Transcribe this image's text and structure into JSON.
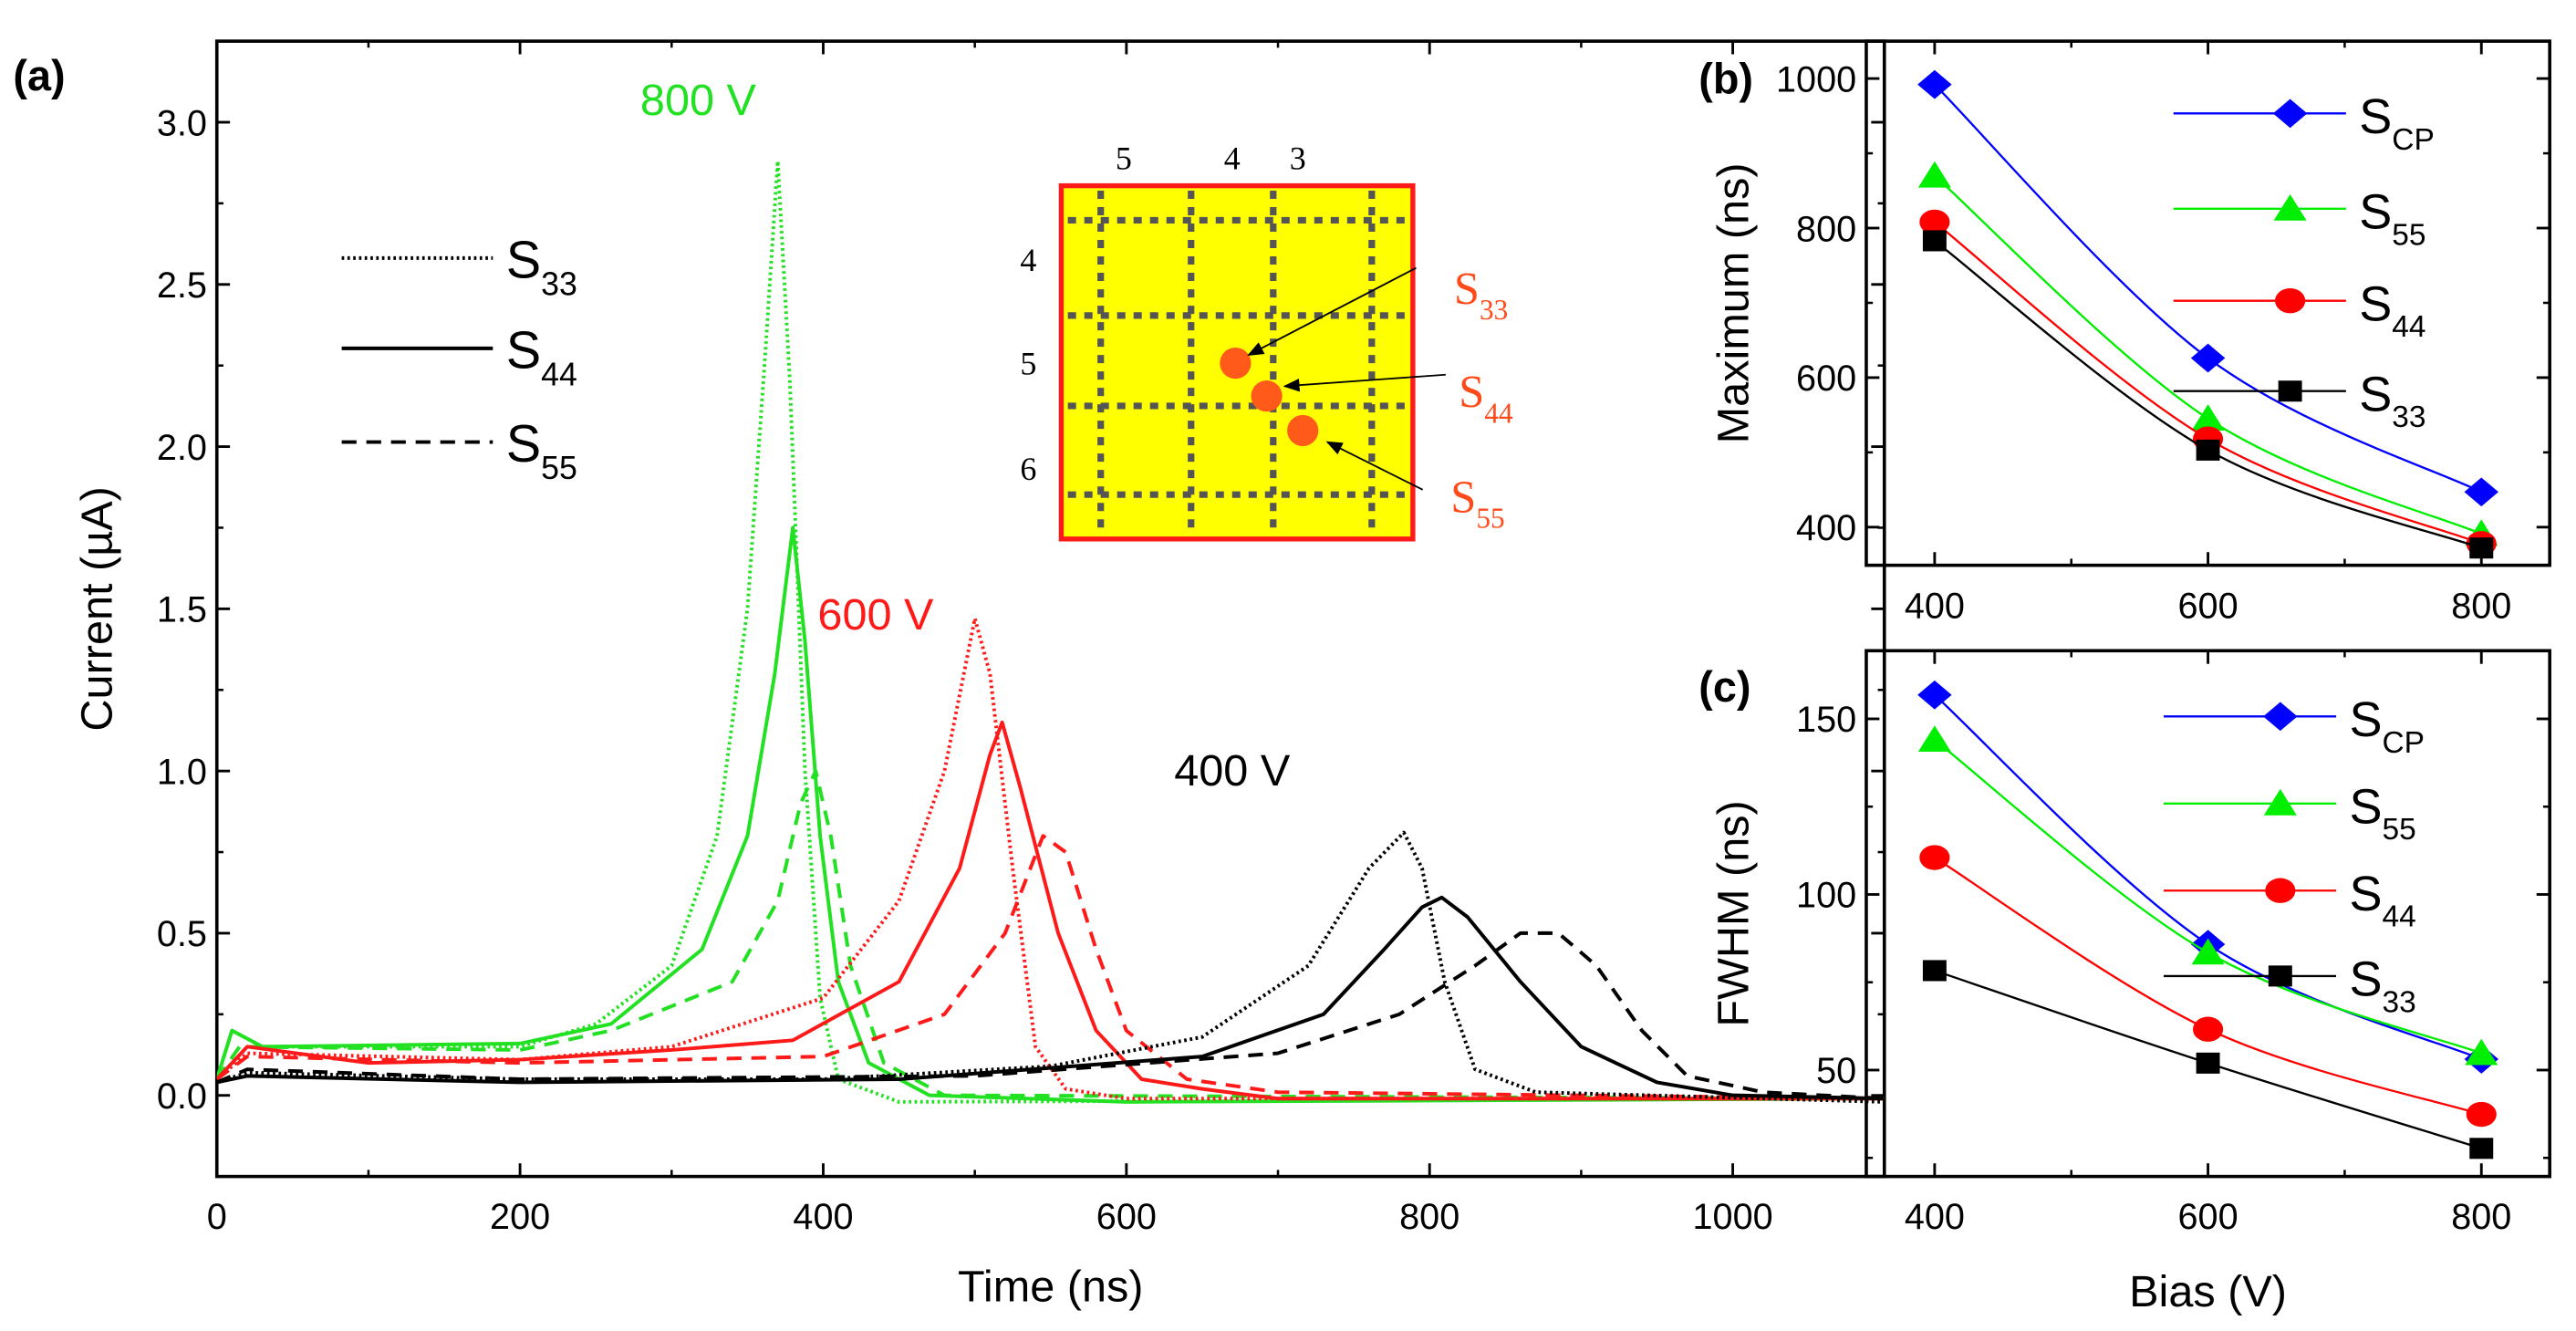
{
  "chart_data": [
    {
      "panel": "(a)",
      "type": "line",
      "xlabel": "Time (ns)",
      "ylabel": "Current (µA)",
      "xlim": [
        0,
        1100
      ],
      "ylim": [
        -0.25,
        3.25
      ],
      "xticks": [
        0,
        200,
        400,
        600,
        800,
        1000
      ],
      "xtick_labels": [
        "0",
        "200",
        "400",
        "600",
        "800",
        "1000"
      ],
      "yticks": [
        0,
        0.5,
        1.0,
        1.5,
        2.0,
        2.5,
        3.0
      ],
      "ytick_labels": [
        "0.0",
        "0.5",
        "1.0",
        "1.5",
        "2.0",
        "2.5",
        "3.0"
      ],
      "legend": [
        {
          "name": "S",
          "sub": "33",
          "style": "dotted"
        },
        {
          "name": "S",
          "sub": "44",
          "style": "solid"
        },
        {
          "name": "S",
          "sub": "55",
          "style": "dashed"
        }
      ],
      "legend_placement": "top-left",
      "annotations": [
        {
          "text": "800 V",
          "color": "#22e022"
        },
        {
          "text": "600 V",
          "color": "#ff1a1a"
        },
        {
          "text": "400 V",
          "color": "#000000"
        }
      ],
      "series": [
        {
          "name": "S33 800 V",
          "color": "#22e022",
          "style": "dotted",
          "points": [
            [
              0,
              0.05
            ],
            [
              10,
              0.2
            ],
            [
              30,
              0.15
            ],
            [
              200,
              0.15
            ],
            [
              250,
              0.22
            ],
            [
              300,
              0.4
            ],
            [
              330,
              0.8
            ],
            [
              350,
              1.5
            ],
            [
              362,
              2.3
            ],
            [
              370,
              2.88
            ],
            [
              378,
              2.2
            ],
            [
              388,
              1.0
            ],
            [
              398,
              0.3
            ],
            [
              410,
              0.05
            ],
            [
              450,
              -0.02
            ],
            [
              1100,
              -0.01
            ]
          ]
        },
        {
          "name": "S44 800 V",
          "color": "#22e022",
          "style": "solid",
          "points": [
            [
              0,
              0.05
            ],
            [
              10,
              0.2
            ],
            [
              30,
              0.15
            ],
            [
              200,
              0.16
            ],
            [
              260,
              0.22
            ],
            [
              320,
              0.45
            ],
            [
              350,
              0.8
            ],
            [
              368,
              1.3
            ],
            [
              380,
              1.75
            ],
            [
              388,
              1.4
            ],
            [
              398,
              0.8
            ],
            [
              410,
              0.35
            ],
            [
              430,
              0.1
            ],
            [
              470,
              0.0
            ],
            [
              600,
              -0.02
            ],
            [
              1100,
              -0.01
            ]
          ]
        },
        {
          "name": "S55 800 V",
          "color": "#22e022",
          "style": "dashed",
          "points": [
            [
              0,
              0.05
            ],
            [
              15,
              0.15
            ],
            [
              200,
              0.14
            ],
            [
              260,
              0.2
            ],
            [
              340,
              0.35
            ],
            [
              370,
              0.6
            ],
            [
              385,
              0.9
            ],
            [
              395,
              1.0
            ],
            [
              405,
              0.8
            ],
            [
              418,
              0.4
            ],
            [
              440,
              0.1
            ],
            [
              480,
              0.0
            ],
            [
              1100,
              -0.01
            ]
          ]
        },
        {
          "name": "S33 600 V",
          "color": "#ff1a1a",
          "style": "dotted",
          "points": [
            [
              0,
              0.05
            ],
            [
              20,
              0.13
            ],
            [
              200,
              0.11
            ],
            [
              300,
              0.15
            ],
            [
              400,
              0.3
            ],
            [
              450,
              0.6
            ],
            [
              480,
              1.0
            ],
            [
              500,
              1.47
            ],
            [
              510,
              1.3
            ],
            [
              525,
              0.7
            ],
            [
              540,
              0.15
            ],
            [
              560,
              0.02
            ],
            [
              600,
              -0.01
            ],
            [
              1100,
              -0.01
            ]
          ]
        },
        {
          "name": "S44 600 V",
          "color": "#ff1a1a",
          "style": "solid",
          "points": [
            [
              0,
              0.05
            ],
            [
              20,
              0.15
            ],
            [
              100,
              0.1
            ],
            [
              200,
              0.11
            ],
            [
              300,
              0.14
            ],
            [
              380,
              0.17
            ],
            [
              450,
              0.35
            ],
            [
              490,
              0.7
            ],
            [
              510,
              1.05
            ],
            [
              518,
              1.15
            ],
            [
              530,
              0.95
            ],
            [
              555,
              0.5
            ],
            [
              580,
              0.2
            ],
            [
              610,
              0.05
            ],
            [
              650,
              0.02
            ],
            [
              700,
              -0.01
            ],
            [
              1100,
              -0.01
            ]
          ]
        },
        {
          "name": "S55 600 V",
          "color": "#ff1a1a",
          "style": "dashed",
          "points": [
            [
              0,
              0.05
            ],
            [
              20,
              0.12
            ],
            [
              200,
              0.1
            ],
            [
              400,
              0.12
            ],
            [
              480,
              0.25
            ],
            [
              520,
              0.5
            ],
            [
              545,
              0.8
            ],
            [
              560,
              0.75
            ],
            [
              580,
              0.45
            ],
            [
              600,
              0.2
            ],
            [
              640,
              0.05
            ],
            [
              700,
              0.01
            ],
            [
              1100,
              -0.01
            ]
          ]
        },
        {
          "name": "S33 400 V",
          "color": "#000000",
          "style": "dotted",
          "points": [
            [
              0,
              0.04
            ],
            [
              20,
              0.07
            ],
            [
              200,
              0.05
            ],
            [
              400,
              0.05
            ],
            [
              550,
              0.09
            ],
            [
              650,
              0.18
            ],
            [
              720,
              0.4
            ],
            [
              760,
              0.7
            ],
            [
              783,
              0.81
            ],
            [
              795,
              0.7
            ],
            [
              810,
              0.35
            ],
            [
              830,
              0.08
            ],
            [
              870,
              0.01
            ],
            [
              1100,
              -0.02
            ]
          ]
        },
        {
          "name": "S44 400 V",
          "color": "#000000",
          "style": "solid",
          "points": [
            [
              0,
              0.04
            ],
            [
              20,
              0.06
            ],
            [
              200,
              0.04
            ],
            [
              450,
              0.05
            ],
            [
              650,
              0.12
            ],
            [
              730,
              0.25
            ],
            [
              770,
              0.45
            ],
            [
              795,
              0.58
            ],
            [
              808,
              0.61
            ],
            [
              825,
              0.55
            ],
            [
              860,
              0.35
            ],
            [
              900,
              0.15
            ],
            [
              950,
              0.04
            ],
            [
              1000,
              0.0
            ],
            [
              1100,
              -0.01
            ]
          ]
        },
        {
          "name": "S55 400 V",
          "color": "#000000",
          "style": "dashed",
          "points": [
            [
              0,
              0.04
            ],
            [
              20,
              0.08
            ],
            [
              200,
              0.05
            ],
            [
              500,
              0.06
            ],
            [
              700,
              0.13
            ],
            [
              780,
              0.25
            ],
            [
              830,
              0.4
            ],
            [
              860,
              0.5
            ],
            [
              885,
              0.5
            ],
            [
              910,
              0.4
            ],
            [
              940,
              0.2
            ],
            [
              970,
              0.06
            ],
            [
              1020,
              0.01
            ],
            [
              1100,
              -0.01
            ]
          ]
        }
      ],
      "inset": {
        "col_labels": [
          "5",
          "4",
          "3"
        ],
        "row_labels": [
          "4",
          "5",
          "6"
        ],
        "point_labels": [
          {
            "name": "S",
            "sub": "33"
          },
          {
            "name": "S",
            "sub": "44"
          },
          {
            "name": "S",
            "sub": "55"
          }
        ],
        "fill": "#ffff00",
        "border": "#ff1a1a",
        "dot_color": "#ff5a1a"
      }
    },
    {
      "panel": "(b)",
      "type": "line",
      "xlabel": "",
      "ylabel": "Maximum (ns)",
      "xlim": [
        350,
        850
      ],
      "ylim": [
        349,
        1050
      ],
      "xticks": [
        400,
        600,
        800
      ],
      "xtick_labels": [
        "400",
        "600",
        "800"
      ],
      "yticks": [
        400,
        600,
        800,
        1000
      ],
      "ytick_labels": [
        "400",
        "600",
        "800",
        "1000"
      ],
      "legend_placement": "top-right",
      "x": [
        400,
        600,
        800
      ],
      "series": [
        {
          "name": "S",
          "sub": "CP",
          "color": "#0000ff",
          "marker": "diamond",
          "values": [
            992,
            626,
            447
          ]
        },
        {
          "name": "S",
          "sub": "55",
          "color": "#00ee00",
          "marker": "triangle",
          "values": [
            870,
            545,
            391
          ]
        },
        {
          "name": "S",
          "sub": "44",
          "color": "#ff0000",
          "marker": "circle",
          "values": [
            808,
            518,
            378
          ]
        },
        {
          "name": "S",
          "sub": "33",
          "color": "#000000",
          "marker": "square",
          "values": [
            783,
            503,
            372
          ]
        }
      ]
    },
    {
      "panel": "(c)",
      "type": "line",
      "xlabel": "Bias (V)",
      "ylabel": "FWHM (ns)",
      "xlim": [
        350,
        850
      ],
      "ylim": [
        19.7,
        169.4
      ],
      "xticks": [
        400,
        600,
        800
      ],
      "xtick_labels": [
        "400",
        "600",
        "800"
      ],
      "yticks": [
        50,
        100,
        150
      ],
      "ytick_labels": [
        "50",
        "100",
        "150"
      ],
      "legend_placement": "top-right",
      "x": [
        400,
        600,
        800
      ],
      "series": [
        {
          "name": "S",
          "sub": "CP",
          "color": "#0000ff",
          "marker": "diamond",
          "values": [
            156.8,
            85.8,
            53.1
          ]
        },
        {
          "name": "S",
          "sub": "55",
          "color": "#00ee00",
          "marker": "triangle",
          "values": [
            144,
            83.4,
            54.8
          ]
        },
        {
          "name": "S",
          "sub": "44",
          "color": "#ff0000",
          "marker": "circle",
          "values": [
            110.5,
            61.6,
            37.4
          ]
        },
        {
          "name": "S",
          "sub": "33",
          "color": "#000000",
          "marker": "square",
          "values": [
            78.3,
            52,
            27.7
          ]
        }
      ]
    }
  ]
}
